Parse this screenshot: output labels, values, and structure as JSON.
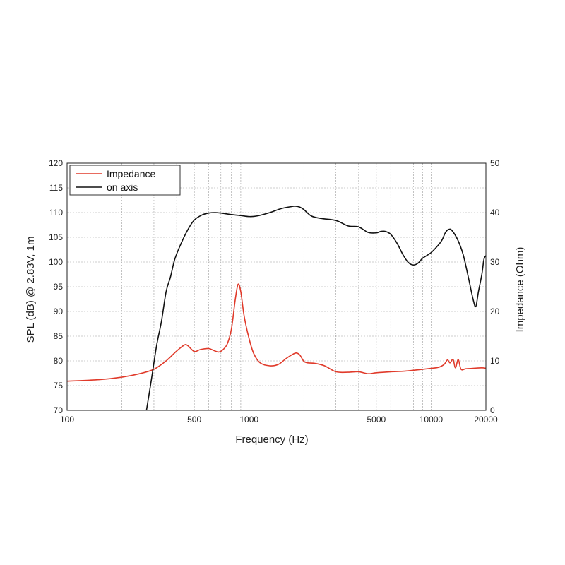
{
  "chart_data": {
    "type": "line",
    "xlabel": "Frequency (Hz)",
    "ylabel_left": "SPL (dB) @ 2.83V, 1m",
    "ylabel_right": "Impedance (Ohm)",
    "x_scale": "log",
    "xlim": [
      100,
      20000
    ],
    "ylim_left": [
      70,
      120
    ],
    "ylim_right": [
      0,
      50
    ],
    "grid": true,
    "legend_position": "top-left",
    "x_ticks": [
      {
        "value": 100,
        "label": "100"
      },
      {
        "value": 500,
        "label": "500"
      },
      {
        "value": 1000,
        "label": "1000"
      },
      {
        "value": 5000,
        "label": "5000"
      },
      {
        "value": 10000,
        "label": "10000"
      },
      {
        "value": 20000,
        "label": "20000"
      }
    ],
    "y_ticks_left": [
      "70",
      "75",
      "80",
      "85",
      "90",
      "95",
      "100",
      "105",
      "110",
      "115",
      "120"
    ],
    "y_ticks_right": [
      "0",
      "10",
      "20",
      "30",
      "40",
      "50"
    ],
    "series": [
      {
        "name": "Impedance",
        "axis": "right",
        "color": "#e03a2a",
        "x": [
          100,
          150,
          200,
          250,
          300,
          350,
          400,
          440,
          460,
          500,
          540,
          600,
          640,
          680,
          720,
          760,
          800,
          840,
          870,
          900,
          940,
          1000,
          1060,
          1150,
          1300,
          1450,
          1600,
          1750,
          1820,
          1900,
          2000,
          2100,
          2300,
          2600,
          3000,
          3500,
          4000,
          4500,
          5000,
          6000,
          7000,
          8000,
          9000,
          10000,
          11000,
          11800,
          12300,
          12700,
          13200,
          13600,
          14100,
          14600,
          15500,
          17000,
          19000,
          20000
        ],
        "y": [
          5.9,
          6.2,
          6.7,
          7.4,
          8.3,
          10.0,
          12.0,
          13.2,
          13.1,
          11.9,
          12.3,
          12.5,
          12.1,
          11.8,
          12.3,
          13.5,
          16.5,
          22.5,
          25.5,
          24.0,
          19.0,
          14.5,
          11.5,
          9.6,
          9.0,
          9.3,
          10.5,
          11.4,
          11.6,
          11.2,
          9.9,
          9.6,
          9.5,
          9.0,
          7.8,
          7.7,
          7.8,
          7.4,
          7.6,
          7.8,
          7.9,
          8.1,
          8.3,
          8.5,
          8.7,
          9.3,
          10.2,
          9.6,
          10.3,
          8.6,
          10.3,
          8.3,
          8.4,
          8.5,
          8.6,
          8.5
        ]
      },
      {
        "name": "on axis",
        "axis": "left",
        "color": "#111111",
        "x": [
          273,
          290,
          310,
          330,
          350,
          370,
          390,
          420,
          460,
          500,
          550,
          600,
          650,
          700,
          800,
          900,
          1000,
          1100,
          1300,
          1500,
          1700,
          1800,
          1900,
          2000,
          2200,
          2500,
          3000,
          3500,
          4000,
          4500,
          5000,
          5300,
          5600,
          6000,
          6500,
          7000,
          7500,
          8000,
          8500,
          9000,
          10000,
          11000,
          11500,
          12000,
          12500,
          13000,
          14000,
          15000,
          16000,
          17000,
          17600,
          18200,
          19000,
          19500,
          20000
        ],
        "y": [
          70,
          76,
          83,
          88,
          94,
          97,
          100.5,
          103.5,
          106.5,
          108.5,
          109.5,
          109.9,
          110.0,
          109.9,
          109.6,
          109.4,
          109.2,
          109.3,
          110.0,
          110.8,
          111.2,
          111.3,
          111.1,
          110.6,
          109.3,
          108.8,
          108.4,
          107.3,
          107.1,
          106.0,
          105.9,
          106.2,
          106.2,
          105.6,
          103.8,
          101.5,
          99.9,
          99.4,
          99.8,
          100.8,
          101.9,
          103.5,
          104.5,
          106.0,
          106.6,
          106.4,
          104.5,
          101.5,
          97.0,
          92.5,
          91.0,
          94.0,
          97.5,
          100.5,
          101.3
        ]
      }
    ]
  }
}
